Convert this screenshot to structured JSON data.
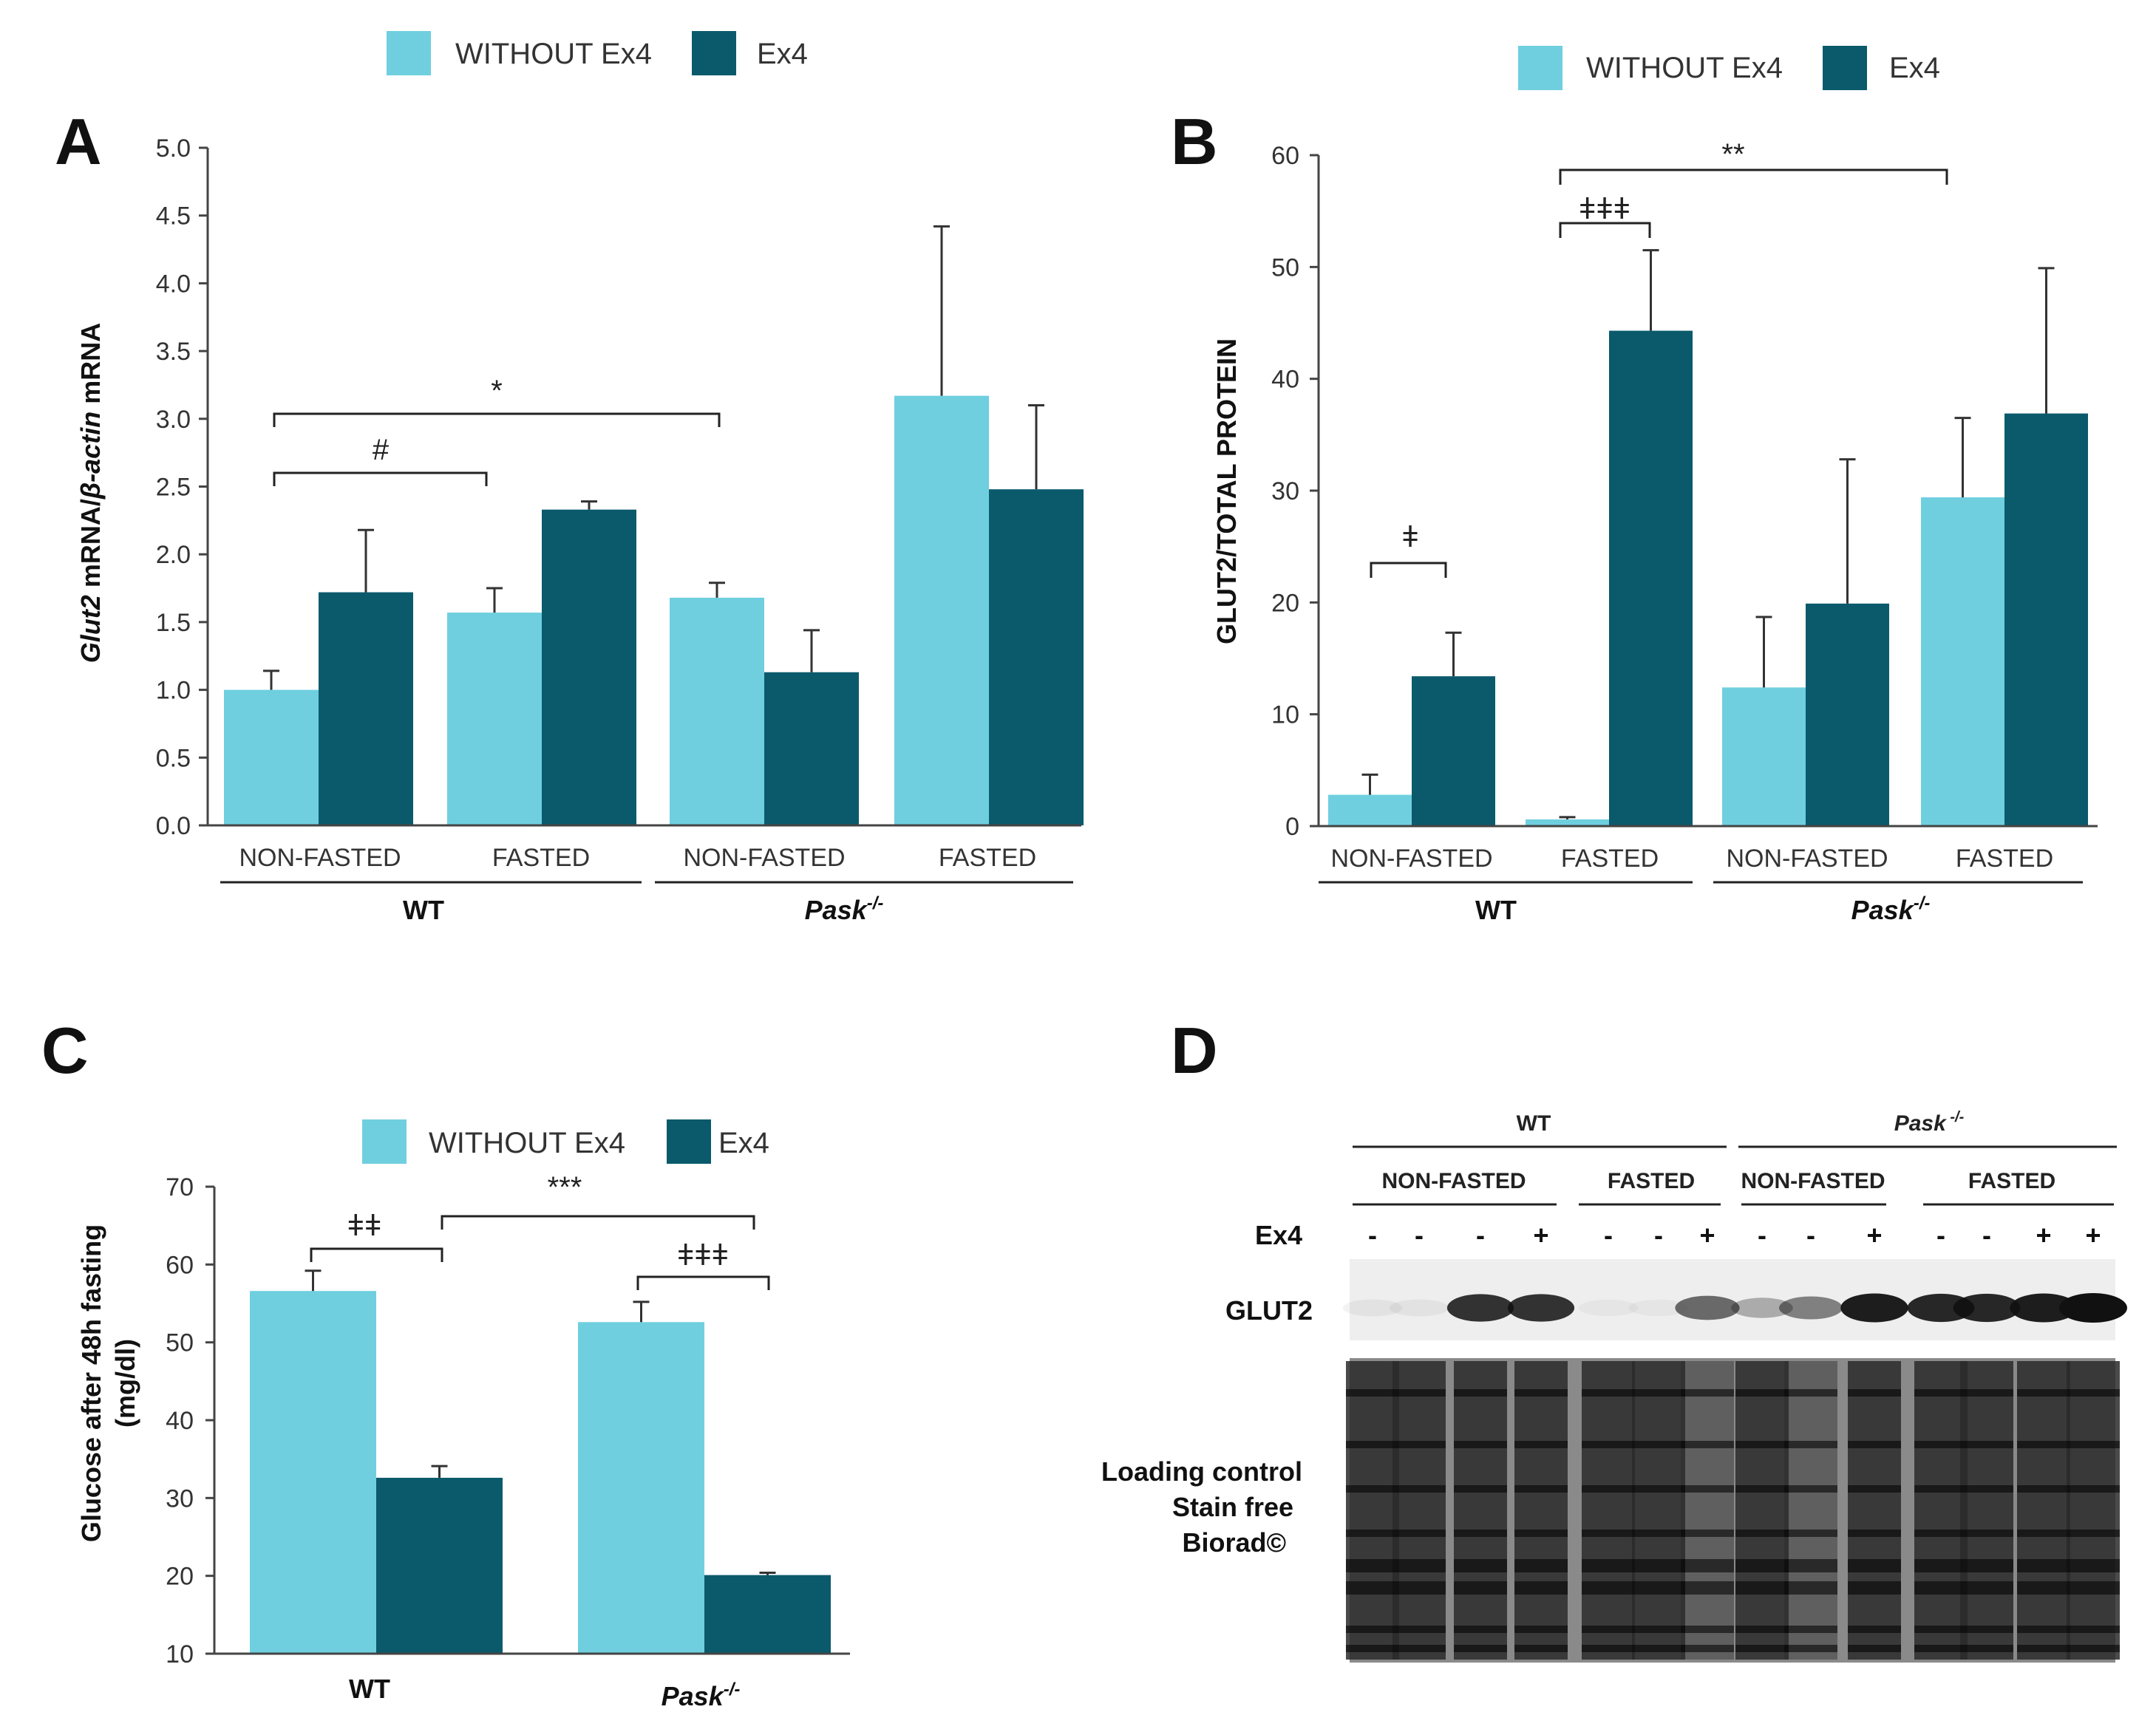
{
  "legend": {
    "without": "WITHOUT Ex4",
    "with": "Ex4"
  },
  "colors": {
    "without": "#6fcfdf",
    "with": "#0a5a6c"
  },
  "chart_data": [
    {
      "panel": "A",
      "type": "bar",
      "ylabel_parts": {
        "glut2": "Glut2",
        "mrna1": " mRNA/",
        "bactin": "β-actin",
        "mrna2": " mRNA"
      },
      "ylim": [
        0,
        5
      ],
      "yticks": [
        "0.0",
        "0.5",
        "1.0",
        "1.5",
        "2.0",
        "2.5",
        "3.0",
        "3.5",
        "4.0",
        "4.5",
        "5.0"
      ],
      "categories": [
        "NON-FASTED",
        "FASTED",
        "NON-FASTED",
        "FASTED"
      ],
      "groups": [
        {
          "label": "WT"
        },
        {
          "label": "Pask-/-",
          "base": "Pask",
          "sup": "-/-"
        }
      ],
      "series": [
        {
          "name": "WITHOUT Ex4",
          "values": [
            1.0,
            1.57,
            1.68,
            3.17
          ],
          "errors": [
            0.14,
            0.18,
            0.11,
            1.25
          ]
        },
        {
          "name": "Ex4",
          "values": [
            1.72,
            2.33,
            1.13,
            2.48
          ],
          "errors": [
            0.46,
            0.06,
            0.31,
            0.62
          ]
        }
      ],
      "annotations": [
        {
          "symbol": "#"
        },
        {
          "symbol": "*"
        }
      ]
    },
    {
      "panel": "B",
      "type": "bar",
      "ylabel": "GLUT2/TOTAL PROTEIN",
      "ylim": [
        0,
        60
      ],
      "yticks": [
        "0",
        "10",
        "20",
        "30",
        "40",
        "50",
        "60"
      ],
      "categories": [
        "NON-FASTED",
        "FASTED",
        "NON-FASTED",
        "FASTED"
      ],
      "groups": [
        {
          "label": "WT"
        },
        {
          "label": "Pask-/-",
          "base": "Pask",
          "sup": "-/-"
        }
      ],
      "series": [
        {
          "name": "WITHOUT Ex4",
          "values": [
            2.8,
            0.6,
            12.4,
            29.4
          ],
          "errors": [
            1.8,
            0.2,
            6.3,
            7.1
          ]
        },
        {
          "name": "Ex4",
          "values": [
            13.4,
            44.3,
            19.9,
            36.9
          ],
          "errors": [
            3.9,
            7.2,
            12.9,
            13.0
          ]
        }
      ],
      "annotations": [
        {
          "symbol": "ǂ"
        },
        {
          "symbol": "ǂǂǂ"
        },
        {
          "symbol": "**"
        }
      ]
    },
    {
      "panel": "C",
      "type": "bar",
      "ylabel": "Glucose after 48h fasting",
      "ylabel2": "(mg/dl)",
      "ylim": [
        10,
        70
      ],
      "yticks": [
        "10",
        "20",
        "30",
        "40",
        "50",
        "60",
        "70"
      ],
      "categories": [
        "WT",
        "Pask-/-"
      ],
      "groups": [
        {
          "label": "WT"
        },
        {
          "label": "Pask-/-",
          "base": "Pask",
          "sup": "-/-"
        }
      ],
      "series": [
        {
          "name": "WITHOUT Ex4",
          "values": [
            56.6,
            52.6
          ],
          "errors": [
            2.6,
            2.6
          ]
        },
        {
          "name": "Ex4",
          "values": [
            32.6,
            20.1
          ],
          "errors": [
            1.5,
            0.3
          ]
        }
      ],
      "annotations": [
        {
          "symbol": "ǂǂ"
        },
        {
          "symbol": "***"
        },
        {
          "symbol": "ǂǂǂ"
        }
      ]
    }
  ],
  "western_blot": {
    "panel": "D",
    "wt": "WT",
    "pask": {
      "base": "Pask",
      "sup": " -/-"
    },
    "subgroups": [
      "NON-FASTED",
      "FASTED",
      "NON-FASTED",
      "FASTED"
    ],
    "ex4_label": "Ex4",
    "ex4_signs": [
      "-",
      "-",
      "-",
      "+",
      "-",
      "-",
      "+",
      "-",
      "-",
      "+",
      "-",
      "-",
      "+",
      "+"
    ],
    "band_intensity": [
      0.05,
      0.05,
      0.85,
      0.85,
      0.03,
      0.03,
      0.6,
      0.3,
      0.5,
      0.95,
      0.9,
      0.9,
      0.95,
      1.0
    ],
    "glut2_label": "GLUT2",
    "loading_lines": [
      "Loading control",
      "Stain free",
      "Biorad©"
    ]
  }
}
